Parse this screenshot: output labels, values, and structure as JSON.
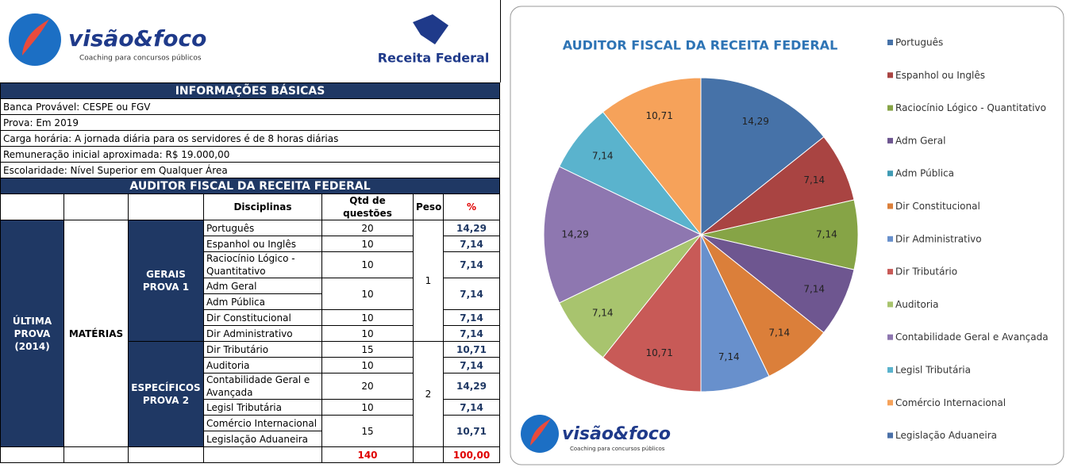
{
  "header": {
    "brand": "visão&foco",
    "tagline": "Coaching para concursos públicos",
    "agency": "Receita Federal"
  },
  "info": {
    "title": "INFORMAÇÕES BÁSICAS",
    "lines": [
      "Banca Provável: CESPE ou FGV",
      "Prova: Em 2019",
      "Carga horária: A jornada diária para os servidores é de 8 horas diárias",
      "Remuneração inicial aproximada: R$ 19.000,00",
      "Escolaridade: Nível Superior em Qualquer Área"
    ]
  },
  "table": {
    "title": "AUDITOR FISCAL DA RECEITA FEDERAL",
    "columns": [
      "Disciplinas",
      "Qtd de questões",
      "Peso",
      "%"
    ],
    "group_label": [
      "ÚLTIMA",
      "PROVA",
      "(2014)"
    ],
    "section_label": "MATÉRIAS",
    "groups": [
      {
        "label": [
          "GERAIS",
          "PROVA 1"
        ],
        "peso": 1,
        "rows": [
          {
            "subjects": [
              "Português"
            ],
            "qtd": 20,
            "pct": "14,29"
          },
          {
            "subjects": [
              "Espanhol ou Inglês"
            ],
            "qtd": 10,
            "pct": "7,14"
          },
          {
            "subjects": [
              "Raciocínio Lógico - Quantitativo"
            ],
            "qtd": 10,
            "pct": "7,14"
          },
          {
            "subjects": [
              "Adm Geral",
              "Adm Pública"
            ],
            "qtd": 10,
            "pct": "7,14"
          },
          {
            "subjects": [
              "Dir Constitucional"
            ],
            "qtd": 10,
            "pct": "7,14"
          },
          {
            "subjects": [
              "Dir Administrativo"
            ],
            "qtd": 10,
            "pct": "7,14"
          }
        ]
      },
      {
        "label": [
          "ESPECÍFICOS",
          "PROVA 2"
        ],
        "peso": 2,
        "rows": [
          {
            "subjects": [
              "Dir Tributário"
            ],
            "qtd": 15,
            "pct": "10,71"
          },
          {
            "subjects": [
              "Auditoria"
            ],
            "qtd": 10,
            "pct": "7,14"
          },
          {
            "subjects": [
              "Contabilidade Geral e Avançada"
            ],
            "qtd": 20,
            "pct": "14,29"
          },
          {
            "subjects": [
              "Legisl Tributária"
            ],
            "qtd": 10,
            "pct": "7,14"
          },
          {
            "subjects": [
              "Comércio Internacional",
              "Legislação Aduaneira"
            ],
            "qtd": 15,
            "pct": "10,71"
          }
        ]
      }
    ],
    "total": {
      "qtd": 140,
      "pct": "100,00"
    }
  },
  "chart_data": {
    "type": "pie",
    "title": "AUDITOR FISCAL DA RECEITA FEDERAL",
    "categories": [
      "Português",
      "Espanhol ou Inglês",
      "Raciocínio Lógico - Quantitativo",
      "Adm Geral",
      "Adm Pública",
      "Dir Constitucional",
      "Dir Administrativo",
      "Dir Tributário",
      "Auditoria",
      "Contabilidade Geral e Avançada",
      "Legisl Tributária",
      "Comércio Internacional",
      "Legislação Aduaneira"
    ],
    "values": [
      14.29,
      7.14,
      7.14,
      7.14,
      null,
      7.14,
      7.14,
      10.71,
      7.14,
      14.29,
      7.14,
      10.71,
      null
    ],
    "value_labels": [
      "14,29",
      "7,14",
      "7,14",
      "7,14",
      null,
      "7,14",
      "7,14",
      "10,71",
      "7,14",
      "14,29",
      "7,14",
      "10,71",
      null
    ],
    "colors": [
      "#4672A8",
      "#A94442",
      "#86A446",
      "#6E5690",
      "#3F9BB4",
      "#DB7F3A",
      "#6890CC",
      "#C85A57",
      "#A8C46E",
      "#8E77B0",
      "#5AB3CD",
      "#F6A25A",
      "#4A70A8"
    ],
    "legend": "right"
  }
}
